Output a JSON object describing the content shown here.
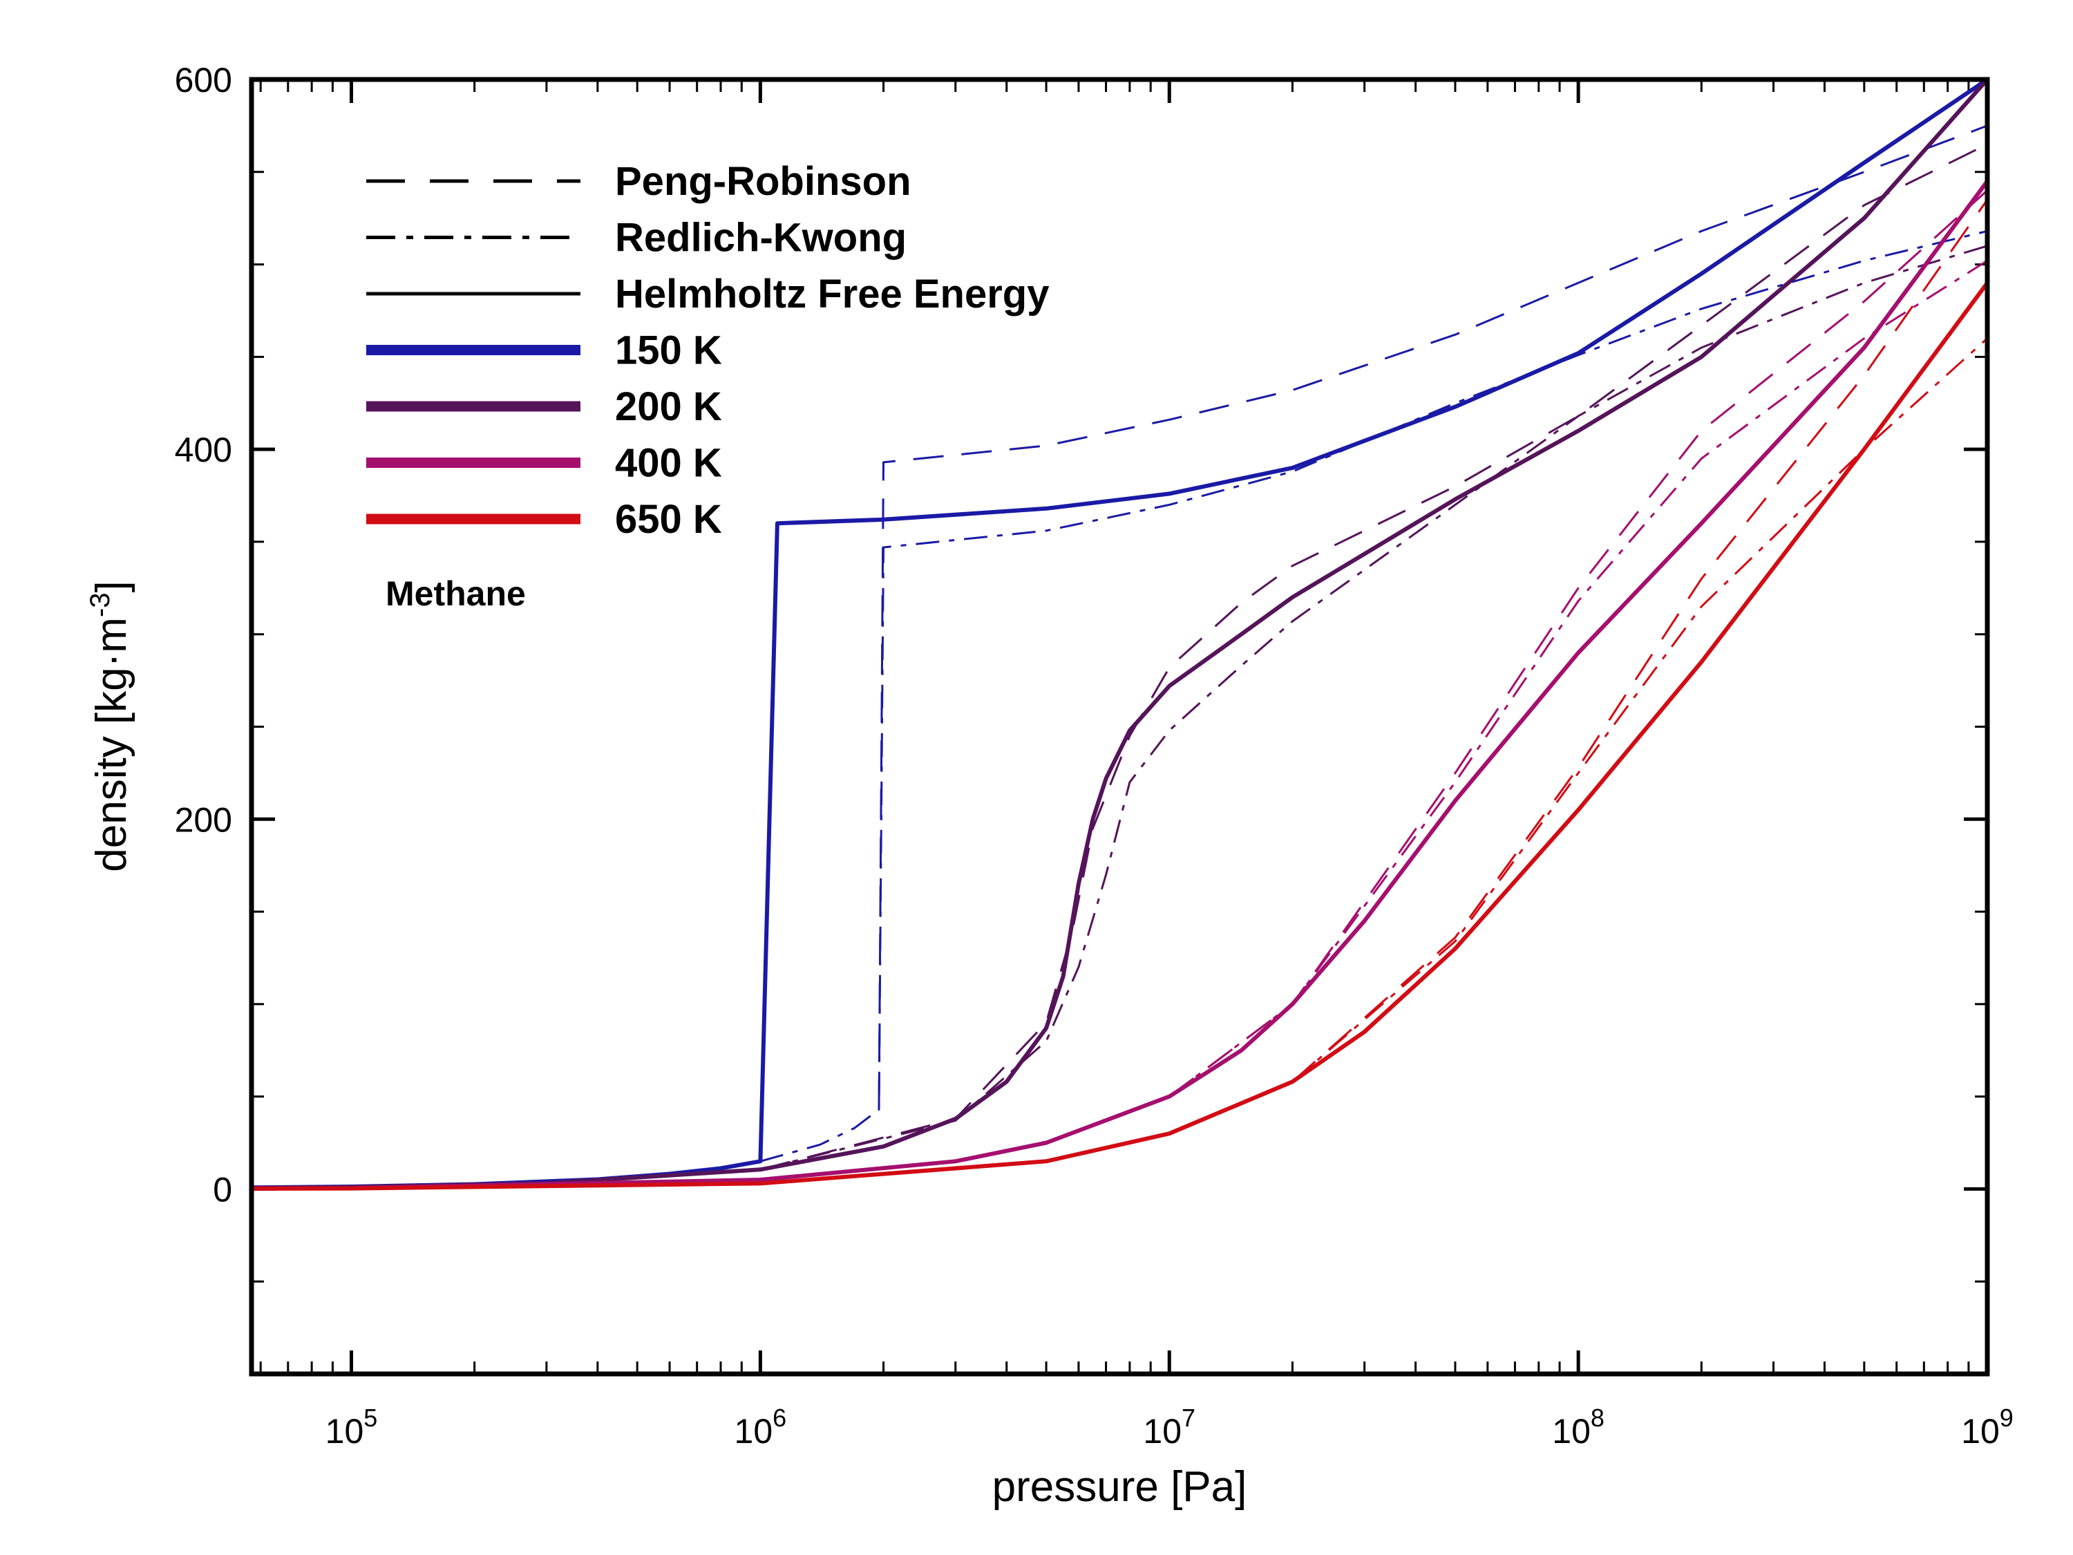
{
  "chart_data": {
    "type": "line",
    "title": "",
    "xlabel": "pressure [Pa]",
    "ylabel": "density [kg·m⁻³]",
    "ylabel_parts": {
      "pre": "density [kg·m",
      "sup": "-3",
      "post": "]"
    },
    "x_scale": "log",
    "xlim": [
      57000,
      1000000000
    ],
    "ylim": [
      -100,
      600
    ],
    "x_ticks": [
      {
        "value": 100000,
        "base": "10",
        "exp": "5"
      },
      {
        "value": 1000000,
        "base": "10",
        "exp": "6"
      },
      {
        "value": 10000000,
        "base": "10",
        "exp": "7"
      },
      {
        "value": 100000000,
        "base": "10",
        "exp": "8"
      },
      {
        "value": 1000000000,
        "base": "10",
        "exp": "9"
      }
    ],
    "y_ticks": [
      0,
      200,
      400,
      600
    ],
    "y_minor_ticks": [
      -50,
      50,
      100,
      150,
      250,
      300,
      350,
      450,
      500,
      550
    ],
    "grid": false,
    "legend_placement": "top-left",
    "annotation": "Methane",
    "legend_styles": [
      {
        "label": "Peng-Robinson",
        "style": "dash"
      },
      {
        "label": "Redlich-Kwong",
        "style": "dashdot"
      },
      {
        "label": "Helmholtz Free Energy",
        "style": "solid"
      }
    ],
    "legend_temperatures": [
      {
        "label": "150 K",
        "color": "#1a1aa6"
      },
      {
        "label": "200 K",
        "color": "#55145a"
      },
      {
        "label": "400 K",
        "color": "#a50f6e"
      },
      {
        "label": "650 K",
        "color": "#d20c14"
      }
    ],
    "series": [
      {
        "temperature": "150 K",
        "model": "Helmholtz Free Energy",
        "style": "solid",
        "color": "#1a1aa6",
        "points": [
          [
            57000,
            0.8
          ],
          [
            100000,
            1.3
          ],
          [
            200000,
            2.6
          ],
          [
            400000,
            5.2
          ],
          [
            600000,
            8.2
          ],
          [
            800000,
            11.2
          ],
          [
            1000000,
            15
          ],
          [
            1000000,
            15
          ],
          [
            1100000,
            360
          ],
          [
            2000000,
            362
          ],
          [
            5000000,
            368
          ],
          [
            10000000,
            376
          ],
          [
            20000000,
            390
          ],
          [
            50000000,
            423
          ],
          [
            100000000,
            452
          ],
          [
            200000000,
            495
          ],
          [
            500000000,
            555
          ],
          [
            1000000000,
            600
          ]
        ]
      },
      {
        "temperature": "150 K",
        "model": "Peng-Robinson",
        "style": "dash",
        "color": "#1a1aa6",
        "points": [
          [
            1950000,
            43
          ],
          [
            2000000,
            393
          ],
          [
            5000000,
            402
          ],
          [
            10000000,
            416
          ],
          [
            20000000,
            432
          ],
          [
            50000000,
            462
          ],
          [
            100000000,
            490
          ],
          [
            200000000,
            518
          ],
          [
            500000000,
            550
          ],
          [
            1000000000,
            575
          ]
        ]
      },
      {
        "temperature": "150 K",
        "model": "Redlich-Kwong",
        "style": "dashdot",
        "color": "#1a1aa6",
        "points": [
          [
            1000000,
            15
          ],
          [
            1400000,
            24
          ],
          [
            1700000,
            33
          ],
          [
            1950000,
            43
          ],
          [
            2000000,
            347
          ],
          [
            5000000,
            356
          ],
          [
            10000000,
            370
          ],
          [
            20000000,
            388
          ],
          [
            50000000,
            425
          ],
          [
            100000000,
            451
          ],
          [
            200000000,
            476
          ],
          [
            500000000,
            502
          ],
          [
            1000000000,
            518
          ]
        ]
      },
      {
        "temperature": "200 K",
        "model": "Helmholtz Free Energy",
        "style": "solid",
        "color": "#55145a",
        "points": [
          [
            57000,
            0.6
          ],
          [
            100000,
            1.0
          ],
          [
            300000,
            3.1
          ],
          [
            1000000,
            10.5
          ],
          [
            2000000,
            23
          ],
          [
            3000000,
            38
          ],
          [
            4000000,
            58
          ],
          [
            5000000,
            87
          ],
          [
            5500000,
            115
          ],
          [
            6000000,
            165
          ],
          [
            6500000,
            200
          ],
          [
            7000000,
            222
          ],
          [
            8000000,
            248
          ],
          [
            10000000,
            272
          ],
          [
            15000000,
            300
          ],
          [
            20000000,
            320
          ],
          [
            50000000,
            373
          ],
          [
            100000000,
            410
          ],
          [
            200000000,
            450
          ],
          [
            500000000,
            525
          ],
          [
            1000000000,
            600
          ]
        ]
      },
      {
        "temperature": "200 K",
        "model": "Peng-Robinson",
        "style": "dash",
        "color": "#55145a",
        "points": [
          [
            1000000,
            10.5
          ],
          [
            3000000,
            38
          ],
          [
            5000000,
            90
          ],
          [
            5800000,
            140
          ],
          [
            6500000,
            195
          ],
          [
            8000000,
            245
          ],
          [
            10000000,
            282
          ],
          [
            15000000,
            317
          ],
          [
            20000000,
            337
          ],
          [
            50000000,
            380
          ],
          [
            100000000,
            418
          ],
          [
            200000000,
            467
          ],
          [
            500000000,
            532
          ],
          [
            1000000000,
            565
          ]
        ]
      },
      {
        "temperature": "200 K",
        "model": "Redlich-Kwong",
        "style": "dashdot",
        "color": "#55145a",
        "points": [
          [
            1000000,
            10.5
          ],
          [
            3000000,
            37
          ],
          [
            5000000,
            80
          ],
          [
            6000000,
            120
          ],
          [
            7000000,
            170
          ],
          [
            8000000,
            220
          ],
          [
            10000000,
            248
          ],
          [
            15000000,
            283
          ],
          [
            20000000,
            307
          ],
          [
            50000000,
            370
          ],
          [
            100000000,
            418
          ],
          [
            200000000,
            455
          ],
          [
            500000000,
            490
          ],
          [
            1000000000,
            510
          ]
        ]
      },
      {
        "temperature": "400 K",
        "model": "Helmholtz Free Energy",
        "style": "solid",
        "color": "#a50f6e",
        "points": [
          [
            57000,
            0.3
          ],
          [
            100000,
            0.5
          ],
          [
            1000000,
            5
          ],
          [
            3000000,
            15
          ],
          [
            5000000,
            25
          ],
          [
            10000000,
            50
          ],
          [
            15000000,
            75
          ],
          [
            20000000,
            100
          ],
          [
            30000000,
            145
          ],
          [
            50000000,
            210
          ],
          [
            100000000,
            290
          ],
          [
            200000000,
            360
          ],
          [
            500000000,
            455
          ],
          [
            1000000000,
            545
          ]
        ]
      },
      {
        "temperature": "400 K",
        "model": "Peng-Robinson",
        "style": "dash",
        "color": "#a50f6e",
        "points": [
          [
            10000000,
            50
          ],
          [
            20000000,
            100
          ],
          [
            50000000,
            225
          ],
          [
            100000000,
            325
          ],
          [
            200000000,
            410
          ],
          [
            500000000,
            480
          ],
          [
            1000000000,
            540
          ]
        ]
      },
      {
        "temperature": "400 K",
        "model": "Redlich-Kwong",
        "style": "dashdot",
        "color": "#a50f6e",
        "points": [
          [
            10000000,
            50
          ],
          [
            20000000,
            100
          ],
          [
            50000000,
            220
          ],
          [
            100000000,
            318
          ],
          [
            200000000,
            395
          ],
          [
            500000000,
            460
          ],
          [
            1000000000,
            502
          ]
        ]
      },
      {
        "temperature": "650 K",
        "model": "Helmholtz Free Energy",
        "style": "solid",
        "color": "#d20c14",
        "points": [
          [
            57000,
            0.2
          ],
          [
            100000,
            0.3
          ],
          [
            1000000,
            3
          ],
          [
            5000000,
            15
          ],
          [
            10000000,
            30
          ],
          [
            20000000,
            58
          ],
          [
            30000000,
            85
          ],
          [
            50000000,
            130
          ],
          [
            100000000,
            205
          ],
          [
            200000000,
            285
          ],
          [
            500000000,
            400
          ],
          [
            1000000000,
            490
          ]
        ]
      },
      {
        "temperature": "650 K",
        "model": "Peng-Robinson",
        "style": "dash",
        "color": "#d20c14",
        "points": [
          [
            20000000,
            58
          ],
          [
            50000000,
            136
          ],
          [
            100000000,
            228
          ],
          [
            200000000,
            330
          ],
          [
            500000000,
            440
          ],
          [
            1000000000,
            535
          ]
        ]
      },
      {
        "temperature": "650 K",
        "model": "Redlich-Kwong",
        "style": "dashdot",
        "color": "#d20c14",
        "points": [
          [
            20000000,
            58
          ],
          [
            50000000,
            134
          ],
          [
            100000000,
            225
          ],
          [
            200000000,
            315
          ],
          [
            500000000,
            400
          ],
          [
            1000000000,
            460
          ]
        ]
      }
    ]
  }
}
